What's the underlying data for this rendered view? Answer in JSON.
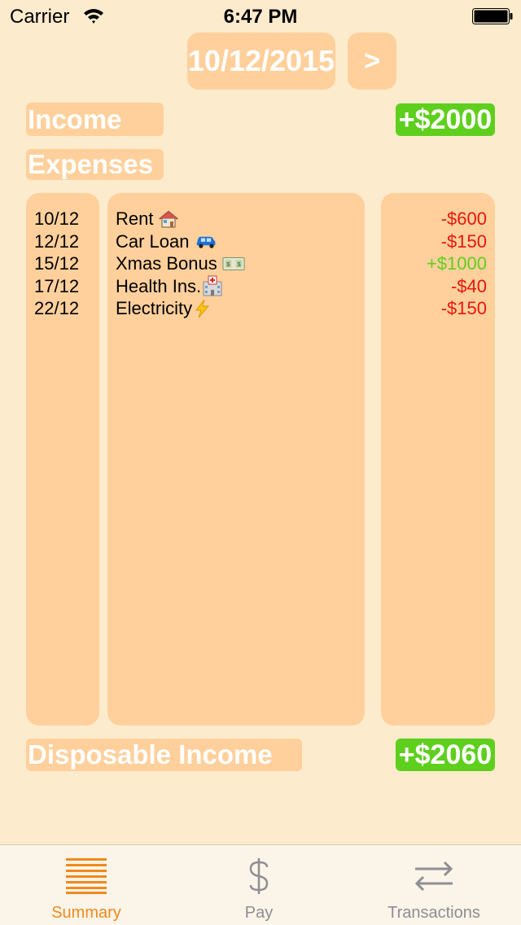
{
  "status_bar": {
    "carrier": "Carrier",
    "time": "6:47 PM"
  },
  "header": {
    "date": "10/12/2015",
    "next_label": ">"
  },
  "income": {
    "label": "Income",
    "amount": "+$2000"
  },
  "expenses": {
    "label": "Expenses",
    "rows": [
      {
        "date": "10/12",
        "description": "Rent",
        "emoji": "house-icon",
        "amount": "-$600",
        "kind": "negative"
      },
      {
        "date": "12/12",
        "description": "Car Loan",
        "emoji": "car-icon",
        "amount": "-$150",
        "kind": "negative"
      },
      {
        "date": "15/12",
        "description": "Xmas Bonus",
        "emoji": "money-icon",
        "amount": "+$1000",
        "kind": "positive"
      },
      {
        "date": "17/12",
        "description": "Health Ins.",
        "emoji": "hospital-icon",
        "amount": "-$40",
        "kind": "negative"
      },
      {
        "date": "22/12",
        "description": "Electricity",
        "emoji": "lightning-icon",
        "amount": "-$150",
        "kind": "negative"
      }
    ]
  },
  "disposable": {
    "label": "Disposable Income",
    "amount": "+$2060"
  },
  "tabs": [
    {
      "label": "Summary",
      "icon": "lines-icon",
      "active": true
    },
    {
      "label": "Pay",
      "icon": "dollar-icon",
      "active": false
    },
    {
      "label": "Transactions",
      "icon": "swap-arrows-icon",
      "active": false
    }
  ],
  "colors": {
    "background": "#fdebcd",
    "panel": "#ffd09c",
    "positive": "#5fcf1e",
    "negative": "#e8160c",
    "active_tab": "#f08a1c"
  }
}
